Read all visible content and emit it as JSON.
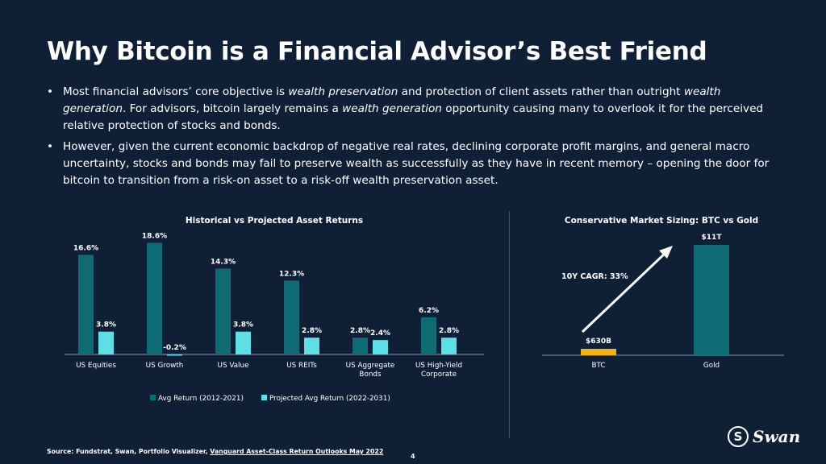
{
  "slide": {
    "title": "Why Bitcoin is a Financial Advisor’s Best Friend",
    "page_number": "4"
  },
  "bullets": [
    {
      "segments": [
        {
          "text": "Most financial advisors’ core objective is ",
          "italic": false
        },
        {
          "text": "wealth preservation",
          "italic": true
        },
        {
          "text": " and protection of client assets rather than outright ",
          "italic": false
        },
        {
          "text": "wealth generation",
          "italic": true
        },
        {
          "text": ". For advisors, bitcoin largely remains a ",
          "italic": false
        },
        {
          "text": "wealth generation",
          "italic": true
        },
        {
          "text": " opportunity causing many to overlook it for the perceived relative protection of stocks and bonds.",
          "italic": false
        }
      ]
    },
    {
      "segments": [
        {
          "text": "However, given the current economic backdrop of negative real rates, declining corporate profit margins, and general macro uncertainty, stocks and bonds may fail to preserve wealth as successfully as they have in recent memory – opening the door for bitcoin to transition from a risk-on asset to a risk-off wealth preservation asset.",
          "italic": false
        }
      ]
    }
  ],
  "chart_data": [
    {
      "type": "bar",
      "title": "Historical vs Projected Asset Returns",
      "categories": [
        "US Equities",
        "US Growth",
        "US Value",
        "US REITs",
        "US Aggregate Bonds",
        "US High-Yield Corporate"
      ],
      "category_lines": [
        [
          "US Equities"
        ],
        [
          "US Growth"
        ],
        [
          "US Value"
        ],
        [
          "US REITs"
        ],
        [
          "US Aggregate",
          "Bonds"
        ],
        [
          "US High-Yield",
          "Corporate"
        ]
      ],
      "series": [
        {
          "name": "Avg Return (2012-2021)",
          "values": [
            16.6,
            18.6,
            14.3,
            12.3,
            2.8,
            6.2
          ],
          "labels": [
            "16.6%",
            "18.6%",
            "14.3%",
            "12.3%",
            "2.8%",
            "6.2%"
          ],
          "color": "#0e6b73"
        },
        {
          "name": "Projected Avg Return (2022-2031)",
          "values": [
            3.8,
            -0.2,
            3.8,
            2.8,
            2.4,
            2.8
          ],
          "labels": [
            "3.8%",
            "-0.2%",
            "3.8%",
            "2.8%",
            "2.4%",
            "2.8%"
          ],
          "color": "#5ce0e6"
        }
      ],
      "legend_position": "bottom",
      "grid": false
    },
    {
      "type": "bar",
      "title": "Conservative Market Sizing: BTC vs Gold",
      "categories": [
        "BTC",
        "Gold"
      ],
      "values_usd_billions": [
        630,
        11000
      ],
      "labels": [
        "$630B",
        "$11T"
      ],
      "colors": [
        "#f2b21c",
        "#0e6b73"
      ],
      "annotation": "10Y CAGR: 33%",
      "grid": false
    }
  ],
  "footer": {
    "source_prefix": "Source: Fundstrat, Swan, Portfolio Visualizer, ",
    "source_link": "Vanguard Asset-Class Return Outlooks May 2022"
  },
  "logo": {
    "mark": "S",
    "text": "Swan",
    "icon": "swan-logo-icon"
  }
}
